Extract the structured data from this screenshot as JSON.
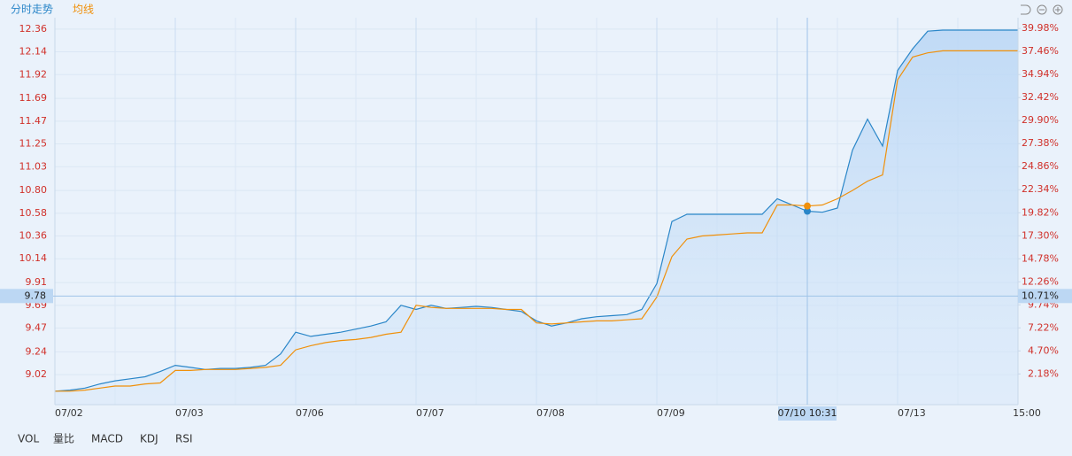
{
  "chart_data": {
    "type": "line",
    "grid": true,
    "legend": "top-left",
    "categories": [
      "07/02",
      null,
      null,
      null,
      null,
      null,
      null,
      null,
      "07/03",
      null,
      null,
      null,
      null,
      null,
      null,
      null,
      "07/06",
      null,
      null,
      null,
      null,
      null,
      null,
      null,
      "07/07",
      null,
      null,
      null,
      null,
      null,
      null,
      null,
      "07/08",
      null,
      null,
      null,
      null,
      null,
      null,
      null,
      "07/09",
      null,
      null,
      null,
      null,
      null,
      null,
      null,
      null,
      null,
      null,
      null,
      null,
      null,
      null,
      null,
      "07/13",
      null,
      null,
      null,
      null,
      null,
      null,
      null,
      "15:00"
    ],
    "series": [
      {
        "name": "分时走势",
        "color": "#2a86c8",
        "values": [
          8.86,
          8.87,
          8.89,
          8.93,
          8.96,
          8.98,
          9.0,
          9.05,
          9.11,
          9.09,
          9.07,
          9.08,
          9.08,
          9.09,
          9.11,
          9.22,
          9.43,
          9.39,
          9.41,
          9.43,
          9.46,
          9.49,
          9.53,
          9.69,
          9.65,
          9.69,
          9.66,
          9.67,
          9.68,
          9.67,
          9.65,
          9.63,
          9.54,
          9.49,
          9.52,
          9.56,
          9.58,
          9.59,
          9.6,
          9.65,
          9.9,
          10.5,
          10.57,
          10.57,
          10.57,
          10.57,
          10.57,
          10.57,
          10.72,
          10.66,
          10.6,
          10.59,
          10.63,
          11.19,
          11.49,
          11.23,
          11.96,
          12.17,
          12.34,
          12.35,
          12.35,
          12.35,
          12.35,
          12.35,
          12.35
        ]
      },
      {
        "name": "均线",
        "color": "#f0900a",
        "values": [
          8.86,
          8.86,
          8.87,
          8.89,
          8.91,
          8.91,
          8.93,
          8.94,
          9.06,
          9.06,
          9.07,
          9.07,
          9.07,
          9.08,
          9.09,
          9.11,
          9.26,
          9.3,
          9.33,
          9.35,
          9.36,
          9.38,
          9.41,
          9.43,
          9.69,
          9.67,
          9.66,
          9.66,
          9.66,
          9.66,
          9.65,
          9.65,
          9.52,
          9.51,
          9.52,
          9.53,
          9.54,
          9.54,
          9.55,
          9.56,
          9.77,
          10.16,
          10.33,
          10.36,
          10.37,
          10.38,
          10.39,
          10.39,
          10.66,
          10.66,
          10.65,
          10.66,
          10.72,
          10.8,
          10.89,
          10.95,
          11.87,
          12.09,
          12.13,
          12.15,
          12.15,
          12.15,
          12.15,
          12.15,
          12.15
        ]
      }
    ],
    "ylim": [
      8.73,
      12.47
    ],
    "yticks": [
      12.36,
      12.14,
      11.92,
      11.69,
      11.47,
      11.25,
      11.03,
      {
        "value": 10.8,
        "label": "10.80"
      },
      10.58,
      10.36,
      10.14,
      9.91,
      9.69,
      9.47,
      9.24,
      9.02
    ],
    "y2lim": [
      -1.18,
      41.16
    ],
    "y2ticks": [
      {
        "value": 39.98,
        "label": "39.98%"
      },
      {
        "value": 37.46,
        "label": "37.46%"
      },
      {
        "value": 34.94,
        "label": "34.94%"
      },
      {
        "value": 32.42,
        "label": "32.42%"
      },
      {
        "value": 29.9,
        "label": "29.90%"
      },
      {
        "value": 27.38,
        "label": "27.38%"
      },
      {
        "value": 24.86,
        "label": "24.86%"
      },
      {
        "value": 22.34,
        "label": "22.34%"
      },
      {
        "value": 19.82,
        "label": "19.82%"
      },
      {
        "value": 17.3,
        "label": "17.30%"
      },
      {
        "value": 14.78,
        "label": "14.78%"
      },
      {
        "value": 12.26,
        "label": "12.26%"
      },
      {
        "value": 9.74,
        "label": "9.74%"
      },
      {
        "value": 7.22,
        "label": "7.22%"
      },
      {
        "value": 4.7,
        "label": "4.70%"
      },
      {
        "value": 2.18,
        "label": "2.18%"
      }
    ],
    "crosshair": {
      "price": 9.78,
      "change": {
        "value": 10.71,
        "label": "10.71%"
      },
      "time": "07/10 10:31"
    },
    "indicator_tabs": [
      "VOL",
      "量比",
      "MACD",
      "KDJ",
      "RSI"
    ]
  }
}
